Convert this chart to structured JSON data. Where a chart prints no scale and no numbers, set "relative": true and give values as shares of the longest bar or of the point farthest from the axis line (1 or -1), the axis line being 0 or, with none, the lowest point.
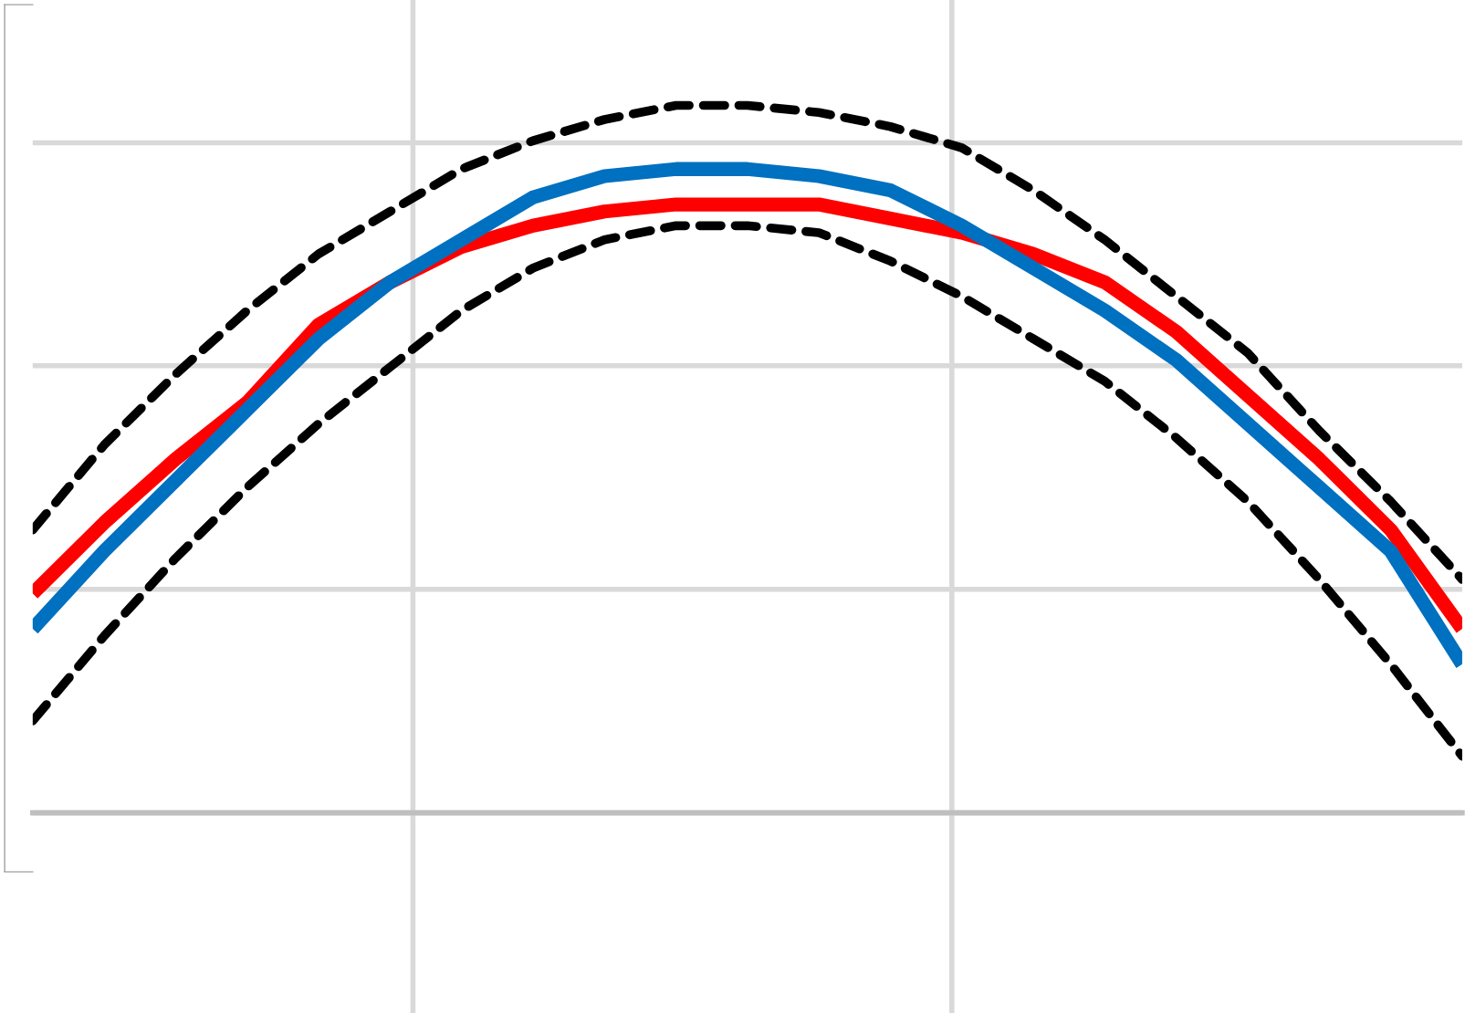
{
  "chart_data": {
    "type": "line",
    "relative": true,
    "grid": true,
    "tick_labels": false,
    "categories": [
      null,
      null,
      null,
      null,
      null,
      null,
      null,
      null,
      null,
      null,
      null,
      null,
      null,
      null,
      null,
      null,
      null,
      null,
      null,
      null,
      null
    ],
    "series": [
      {
        "color": "#000000",
        "line_style": "dashed",
        "values": [
          0.4,
          0.52,
          0.62,
          0.71,
          0.79,
          0.85,
          0.91,
          0.95,
          0.98,
          1.0,
          1.0,
          0.99,
          0.97,
          0.94,
          0.88,
          0.81,
          0.73,
          0.65,
          0.54,
          0.44,
          0.33
        ]
      },
      {
        "color": "#000000",
        "line_style": "dashed",
        "values": [
          0.13,
          0.25,
          0.36,
          0.46,
          0.55,
          0.63,
          0.71,
          0.77,
          0.81,
          0.83,
          0.83,
          0.82,
          0.78,
          0.73,
          0.67,
          0.61,
          0.53,
          0.44,
          0.33,
          0.21,
          0.08
        ]
      },
      {
        "color": "#ff0000",
        "line_style": "solid",
        "values": [
          0.31,
          0.41,
          0.5,
          0.58,
          0.69,
          0.75,
          0.8,
          0.83,
          0.85,
          0.86,
          0.86,
          0.86,
          0.84,
          0.82,
          0.79,
          0.75,
          0.68,
          0.59,
          0.5,
          0.4,
          0.26
        ]
      },
      {
        "color": "#0070c0",
        "line_style": "solid",
        "values": [
          0.26,
          0.37,
          0.47,
          0.57,
          0.67,
          0.75,
          0.81,
          0.87,
          0.9,
          0.91,
          0.91,
          0.9,
          0.88,
          0.83,
          0.77,
          0.71,
          0.64,
          0.55,
          0.46,
          0.37,
          0.21
        ]
      }
    ]
  }
}
